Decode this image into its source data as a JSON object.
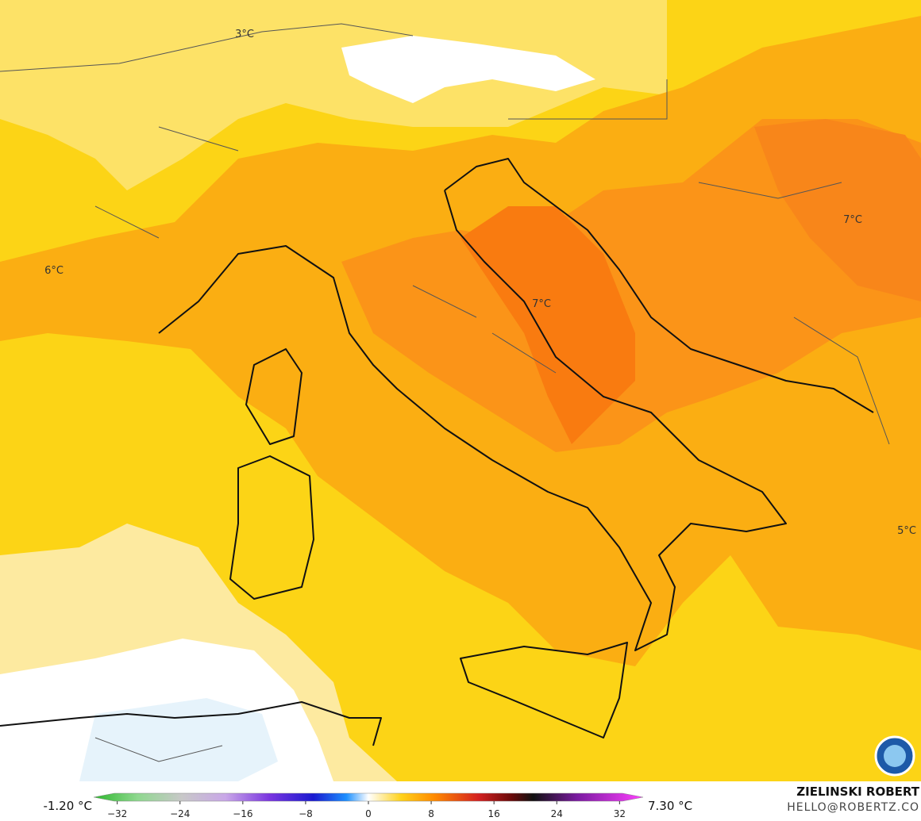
{
  "map_labels": [
    "3°C",
    "6°C",
    "7°C",
    "7°C",
    "5°C"
  ],
  "colorbar": {
    "min_label": "-1.20 °C",
    "max_label": "7.30 °C",
    "lim": [
      -35,
      35
    ],
    "ticks": [
      {
        "value": -32,
        "label": "−32"
      },
      {
        "value": -24,
        "label": "−24"
      },
      {
        "value": -16,
        "label": "−16"
      },
      {
        "value": -8,
        "label": "−8"
      },
      0,
      8,
      16,
      24,
      32
    ]
  },
  "credit": {
    "name": "ZIELINSKI ROBERT",
    "contact": "HELLO@ROBERTZ.CO"
  }
}
